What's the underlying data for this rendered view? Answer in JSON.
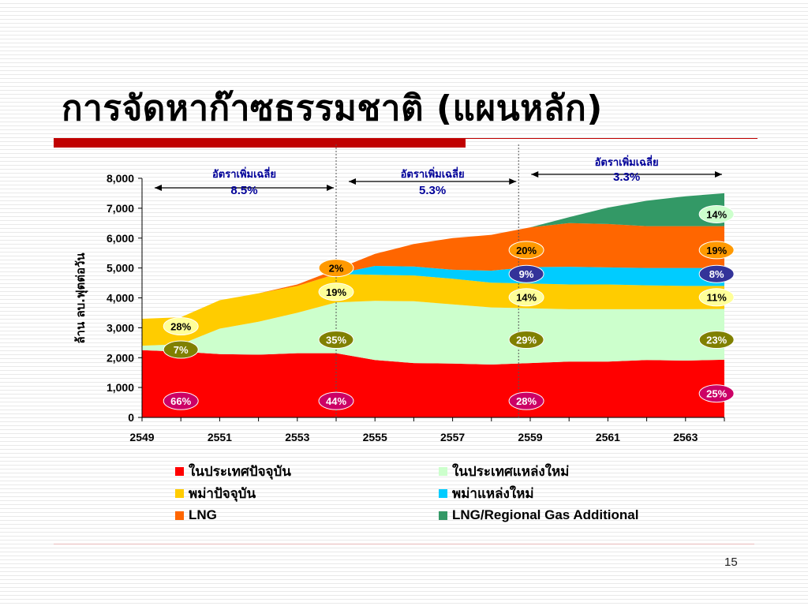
{
  "slide": {
    "title": "การจัดหาก๊าซธรรมชาติ (แผนหลัก)",
    "page_number": "15"
  },
  "chart_data": {
    "type": "area",
    "stacked": true,
    "title": "",
    "xlabel": "",
    "ylabel": "ล้าน ลบ.ฟุตต่อวัน",
    "xlim": [
      2549,
      2564
    ],
    "ylim": [
      0,
      8000
    ],
    "x_ticks": [
      "2549",
      "2551",
      "2553",
      "2555",
      "2557",
      "2559",
      "2561",
      "2563"
    ],
    "y_ticks": [
      "0",
      "1,000",
      "2,000",
      "3,000",
      "4,000",
      "5,000",
      "6,000",
      "7,000",
      "8,000"
    ],
    "x": [
      2549,
      2550,
      2551,
      2552,
      2553,
      2554,
      2555,
      2556,
      2557,
      2558,
      2559,
      2560,
      2561,
      2562,
      2563,
      2564
    ],
    "series": [
      {
        "name": "ในประเทศปัจจุบัน",
        "color": "#ff0000",
        "values": [
          2250,
          2200,
          2120,
          2100,
          2150,
          2150,
          1920,
          1820,
          1800,
          1770,
          1820,
          1870,
          1870,
          1920,
          1900,
          1930
        ]
      },
      {
        "name": "ในประเทศแหล่งใหม่",
        "color": "#ccffcc",
        "values": [
          150,
          250,
          850,
          1100,
          1350,
          1700,
          1980,
          2070,
          1980,
          1910,
          1830,
          1750,
          1750,
          1700,
          1720,
          1700
        ]
      },
      {
        "name": "พม่าปัจจุบัน",
        "color": "#ffcc00",
        "values": [
          900,
          900,
          950,
          950,
          900,
          950,
          870,
          860,
          860,
          830,
          830,
          830,
          830,
          800,
          780,
          770
        ]
      },
      {
        "name": "พม่าแหล่งใหม่",
        "color": "#00ccff",
        "values": [
          0,
          0,
          0,
          0,
          0,
          0,
          300,
          300,
          300,
          400,
          550,
          590,
          570,
          580,
          600,
          600
        ]
      },
      {
        "name": "LNG",
        "color": "#ff6600",
        "values": [
          0,
          0,
          0,
          0,
          50,
          150,
          400,
          750,
          1060,
          1200,
          1330,
          1460,
          1450,
          1400,
          1400,
          1400
        ]
      },
      {
        "name": "LNG/Regional Gas Additional",
        "color": "#339966",
        "values": [
          0,
          0,
          0,
          0,
          0,
          0,
          0,
          0,
          0,
          0,
          0,
          200,
          550,
          850,
          1000,
          1100
        ]
      }
    ],
    "growth_annotations": [
      {
        "label": "อัตราเพิ่มเฉลี่ย",
        "rate": "8.5%",
        "from": 2549,
        "to": 2554
      },
      {
        "label": "อัตราเพิ่มเฉลี่ย",
        "rate": "5.3%",
        "from": 2554,
        "to": 2558.7
      },
      {
        "label": "อัตราเพิ่มเฉลี่ย",
        "rate": "3.3%",
        "from": 2558.7,
        "to": 2564
      }
    ],
    "share_labels": [
      {
        "text": "66%",
        "series": "ในประเทศปัจจุบัน",
        "x": 2550,
        "y": 550,
        "color": "#cc0066",
        "text_color": "#ffffff"
      },
      {
        "text": "7%",
        "series": "ในประเทศแหล่งใหม่",
        "x": 2550,
        "y": 2270,
        "color": "#808000",
        "text_color": "#ffffff"
      },
      {
        "text": "28%",
        "series": "พม่าปัจจุบัน",
        "x": 2550,
        "y": 3050,
        "color": "#ffff99",
        "text_color": "#000000"
      },
      {
        "text": "44%",
        "series": "ในประเทศปัจจุบัน",
        "x": 2554,
        "y": 550,
        "color": "#cc0066",
        "text_color": "#ffffff"
      },
      {
        "text": "35%",
        "series": "ในประเทศแหล่งใหม่",
        "x": 2554,
        "y": 2600,
        "color": "#808000",
        "text_color": "#ffffff"
      },
      {
        "text": "19%",
        "series": "พม่าปัจจุบัน",
        "x": 2554,
        "y": 4200,
        "color": "#ffff99",
        "text_color": "#000000"
      },
      {
        "text": "2%",
        "series": "LNG",
        "x": 2554,
        "y": 5000,
        "color": "#ff9900",
        "text_color": "#000000"
      },
      {
        "text": "28%",
        "series": "ในประเทศปัจจุบัน",
        "x": 2558.9,
        "y": 550,
        "color": "#cc0066",
        "text_color": "#ffffff"
      },
      {
        "text": "29%",
        "series": "ในประเทศแหล่งใหม่",
        "x": 2558.9,
        "y": 2600,
        "color": "#808000",
        "text_color": "#ffffff"
      },
      {
        "text": "14%",
        "series": "พม่าปัจจุบัน",
        "x": 2558.9,
        "y": 4020,
        "color": "#ffff99",
        "text_color": "#000000"
      },
      {
        "text": "9%",
        "series": "พม่าแหล่งใหม่",
        "x": 2558.9,
        "y": 4800,
        "color": "#333399",
        "text_color": "#ffffff"
      },
      {
        "text": "20%",
        "series": "LNG",
        "x": 2558.9,
        "y": 5600,
        "color": "#ff9900",
        "text_color": "#000000"
      },
      {
        "text": "25%",
        "series": "ในประเทศปัจจุบัน",
        "x": 2563.8,
        "y": 800,
        "color": "#cc0066",
        "text_color": "#ffffff"
      },
      {
        "text": "23%",
        "series": "ในประเทศแหล่งใหม่",
        "x": 2563.8,
        "y": 2600,
        "color": "#808000",
        "text_color": "#ffffff"
      },
      {
        "text": "11%",
        "series": "พม่าปัจจุบัน",
        "x": 2563.8,
        "y": 4020,
        "color": "#ffff99",
        "text_color": "#000000"
      },
      {
        "text": "8%",
        "series": "พม่าแหล่งใหม่",
        "x": 2563.8,
        "y": 4800,
        "color": "#333399",
        "text_color": "#ffffff"
      },
      {
        "text": "19%",
        "series": "LNG",
        "x": 2563.8,
        "y": 5600,
        "color": "#ff9900",
        "text_color": "#000000"
      },
      {
        "text": "14%",
        "series": "LNG/Regional Gas Additional",
        "x": 2563.8,
        "y": 6800,
        "color": "#ccffcc",
        "text_color": "#000000"
      }
    ],
    "legend": {
      "placement": "bottom",
      "items": [
        {
          "label": "ในประเทศปัจจุบัน",
          "color": "#ff0000"
        },
        {
          "label": "ในประเทศแหล่งใหม่",
          "color": "#ccffcc"
        },
        {
          "label": "พม่าปัจจุบัน",
          "color": "#ffcc00"
        },
        {
          "label": "พม่าแหล่งใหม่",
          "color": "#00ccff"
        },
        {
          "label": "LNG",
          "color": "#ff6600"
        },
        {
          "label": "LNG/Regional Gas Additional",
          "color": "#339966"
        }
      ]
    },
    "grid": false
  }
}
